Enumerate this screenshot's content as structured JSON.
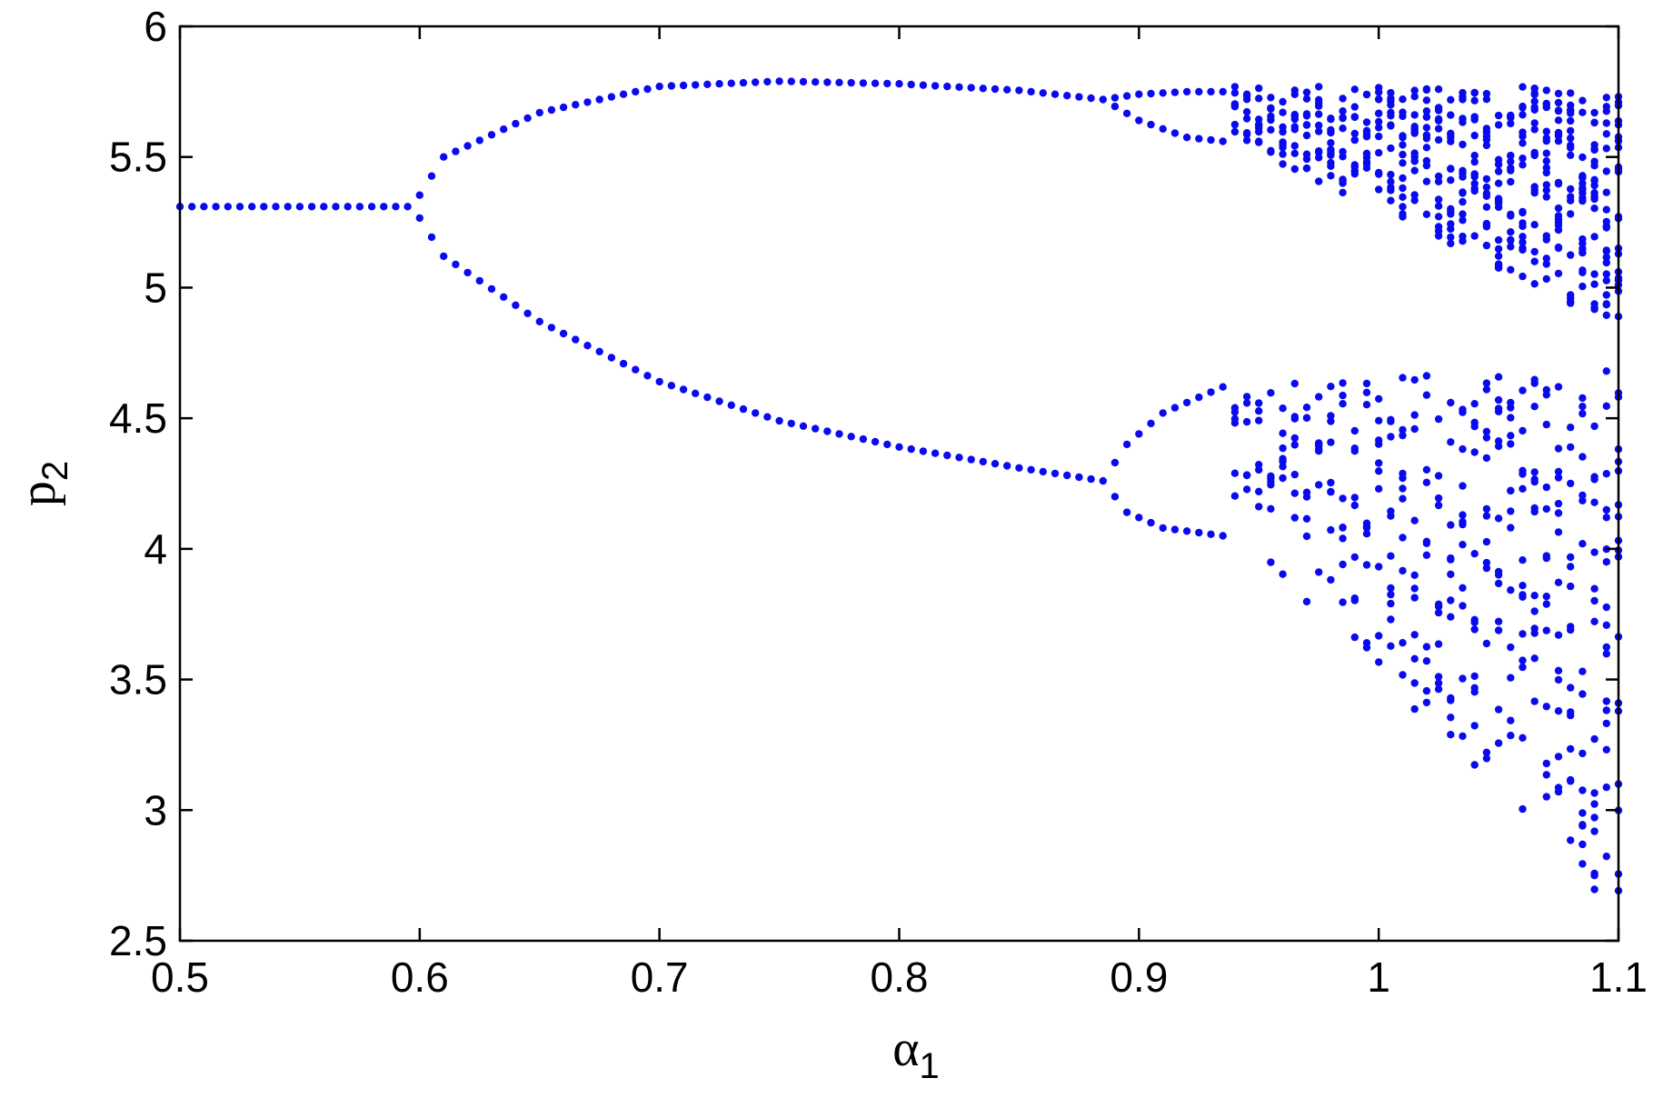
{
  "chart_data": {
    "type": "scatter",
    "title": "",
    "xlabel": "α",
    "xlabel_subscript": "1",
    "ylabel": "p",
    "ylabel_subscript": "2",
    "xlim": [
      0.5,
      1.1
    ],
    "ylim": [
      2.5,
      6.0
    ],
    "x_ticks": [
      "0.5",
      "0.6",
      "0.7",
      "0.8",
      "0.9",
      "1",
      "1.1"
    ],
    "y_ticks": [
      "2.5",
      "3",
      "3.5",
      "4",
      "4.5",
      "5",
      "5.5",
      "6"
    ],
    "grid": false,
    "marker_color": "#0a0af0",
    "frame_color": "#000000",
    "description_values": {
      "fixed_point": 5.31,
      "first_bifurcation_alpha": 0.597,
      "second_bifurcation_alpha": 0.885,
      "third_bifurcation_alpha": 0.935,
      "period2_upper_max": 5.79,
      "period2_lower_at_0_885": 4.26,
      "chaos_range": [
        2.6,
        5.77
      ]
    },
    "series": [
      {
        "segments": [
          {
            "branch": "fixed",
            "x": [
              0.5,
              0.597
            ],
            "p": [
              5.31,
              5.31
            ]
          },
          {
            "branch": "p2-upper",
            "points": [
              [
                0.597,
                5.31
              ],
              [
                0.61,
                5.5
              ],
              [
                0.65,
                5.67
              ],
              [
                0.7,
                5.77
              ],
              [
                0.75,
                5.79
              ],
              [
                0.8,
                5.78
              ],
              [
                0.85,
                5.755
              ],
              [
                0.885,
                5.72
              ]
            ]
          },
          {
            "branch": "p2-lower",
            "points": [
              [
                0.597,
                5.31
              ],
              [
                0.61,
                5.12
              ],
              [
                0.65,
                4.87
              ],
              [
                0.7,
                4.64
              ],
              [
                0.75,
                4.49
              ],
              [
                0.8,
                4.39
              ],
              [
                0.85,
                4.31
              ],
              [
                0.885,
                4.26
              ]
            ]
          },
          {
            "branch": "p4-upper-top",
            "points": [
              [
                0.885,
                5.72
              ],
              [
                0.9,
                5.74
              ],
              [
                0.92,
                5.75
              ],
              [
                0.935,
                5.75
              ]
            ]
          },
          {
            "branch": "p4-upper-bottom",
            "points": [
              [
                0.885,
                5.72
              ],
              [
                0.9,
                5.64
              ],
              [
                0.92,
                5.575
              ],
              [
                0.935,
                5.56
              ]
            ]
          },
          {
            "branch": "p4-lower-top",
            "points": [
              [
                0.885,
                4.26
              ],
              [
                0.895,
                4.4
              ],
              [
                0.91,
                4.52
              ],
              [
                0.935,
                4.62
              ]
            ]
          },
          {
            "branch": "p4-lower-bottom",
            "points": [
              [
                0.885,
                4.26
              ],
              [
                0.895,
                4.14
              ],
              [
                0.91,
                4.08
              ],
              [
                0.935,
                4.05
              ]
            ]
          }
        ]
      }
    ]
  }
}
